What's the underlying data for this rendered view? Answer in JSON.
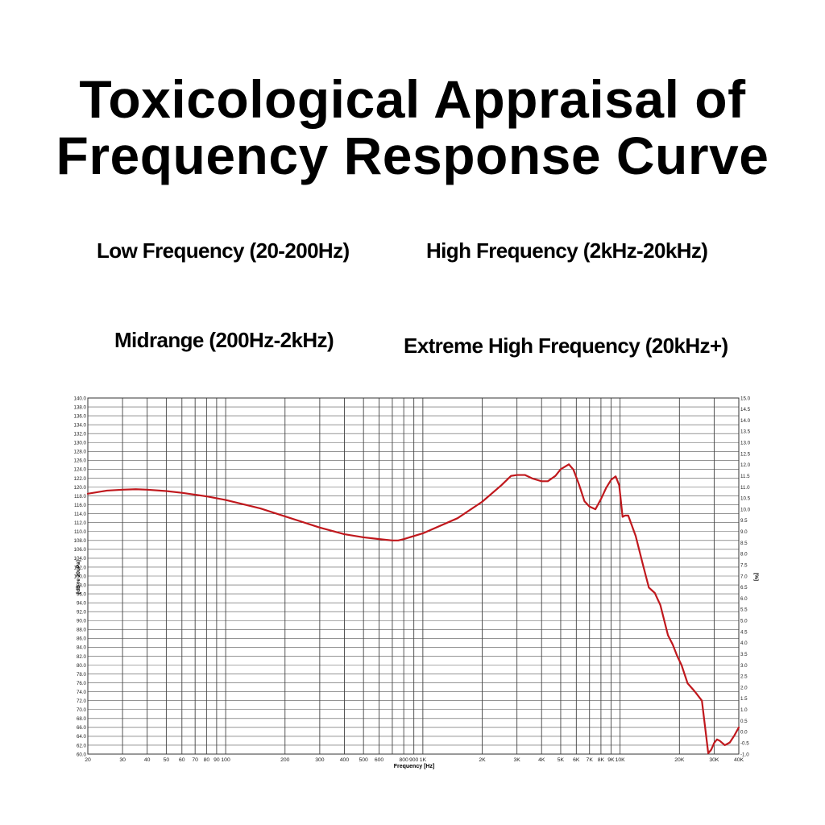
{
  "title": {
    "line1": "Toxicological Appraisal of",
    "line2": "Frequency Response Curve"
  },
  "band_labels": {
    "low": "Low Frequency (20-200Hz)",
    "high": "High Frequency (2kHz-20kHz)",
    "mid": "Midrange (200Hz-2kHz)",
    "extreme": "Extreme High Frequency (20kHz+)"
  },
  "chart_data": {
    "type": "line",
    "title": "",
    "xlabel": "Frequency [Hz]",
    "ylabel": "[dB re 20uPa]",
    "y2label": "[%]",
    "x_scale": "log",
    "xlim": [
      20,
      40000
    ],
    "ylim": [
      60,
      140
    ],
    "y2lim": [
      -1,
      15
    ],
    "grid": true,
    "line_color": "#c0181d",
    "x_ticks": [
      {
        "value": 20,
        "label": "20"
      },
      {
        "value": 30,
        "label": "30"
      },
      {
        "value": 40,
        "label": "40"
      },
      {
        "value": 50,
        "label": "50"
      },
      {
        "value": 60,
        "label": "60"
      },
      {
        "value": 70,
        "label": "70"
      },
      {
        "value": 80,
        "label": "80"
      },
      {
        "value": 90,
        "label": "90"
      },
      {
        "value": 100,
        "label": "100"
      },
      {
        "value": 200,
        "label": "200"
      },
      {
        "value": 300,
        "label": "300"
      },
      {
        "value": 400,
        "label": "400"
      },
      {
        "value": 500,
        "label": "500"
      },
      {
        "value": 600,
        "label": "600"
      },
      {
        "value": 800,
        "label": "800"
      },
      {
        "value": 900,
        "label": "900"
      },
      {
        "value": 1000,
        "label": "1K"
      },
      {
        "value": 2000,
        "label": "2K"
      },
      {
        "value": 3000,
        "label": "3K"
      },
      {
        "value": 4000,
        "label": "4K"
      },
      {
        "value": 5000,
        "label": "5K"
      },
      {
        "value": 6000,
        "label": "6K"
      },
      {
        "value": 7000,
        "label": "7K"
      },
      {
        "value": 8000,
        "label": "8K"
      },
      {
        "value": 9000,
        "label": "9K"
      },
      {
        "value": 10000,
        "label": "10K"
      },
      {
        "value": 20000,
        "label": "20K"
      },
      {
        "value": 30000,
        "label": "30K"
      },
      {
        "value": 40000,
        "label": "40K"
      }
    ],
    "x_gridlines": [
      20,
      30,
      40,
      50,
      60,
      70,
      80,
      90,
      100,
      200,
      300,
      400,
      500,
      600,
      700,
      800,
      900,
      1000,
      2000,
      3000,
      4000,
      5000,
      6000,
      7000,
      8000,
      9000,
      10000,
      20000,
      30000,
      40000
    ],
    "y_ticks": [
      "140.0",
      "138.0",
      "136.0",
      "134.0",
      "132.0",
      "130.0",
      "128.0",
      "126.0",
      "124.0",
      "122.0",
      "120.0",
      "118.0",
      "116.0",
      "114.0",
      "112.0",
      "110.0",
      "108.0",
      "106.0",
      "104.0",
      "102.0",
      "100.0",
      "98.0",
      "96.0",
      "94.0",
      "92.0",
      "90.0",
      "88.0",
      "86.0",
      "84.0",
      "82.0",
      "80.0",
      "78.0",
      "76.0",
      "74.0",
      "72.0",
      "70.0",
      "68.0",
      "66.0",
      "64.0",
      "62.0",
      "60.0"
    ],
    "y2_ticks": [
      "15.0",
      "14.5",
      "14.0",
      "13.5",
      "13.0",
      "12.5",
      "12.0",
      "11.5",
      "11.0",
      "10.5",
      "10.0",
      "9.5",
      "9.0",
      "8.5",
      "8.0",
      "7.5",
      "7.0",
      "6.5",
      "6.0",
      "5.5",
      "5.0",
      "4.5",
      "4.0",
      "3.5",
      "3.0",
      "2.5",
      "2.0",
      "1.5",
      "1.0",
      "0.5",
      "0.0",
      "-0.5",
      "-1.0"
    ],
    "series": [
      {
        "x": [
          20,
          25,
          30,
          35,
          40,
          50,
          60,
          80,
          100,
          150,
          200,
          300,
          400,
          500,
          600,
          700,
          750,
          800,
          1000,
          1500,
          2000,
          2500,
          2800,
          3000,
          3300,
          3600,
          4000,
          4300,
          4700,
          5000,
          5500,
          5800,
          6200,
          6600,
          7000,
          7500,
          8000,
          8500,
          9000,
          9500,
          9900,
          10300,
          10600,
          11000,
          12000,
          13000,
          14000,
          15000,
          16000,
          17500,
          18500,
          19500,
          20500,
          22000,
          24000,
          26000,
          28000,
          29000,
          30000,
          31000,
          32000,
          34000,
          36000,
          38000,
          40000
        ],
        "y": [
          118.5,
          119.2,
          119.4,
          119.5,
          119.4,
          119.1,
          118.7,
          117.9,
          117.1,
          115.2,
          113.4,
          110.9,
          109.4,
          108.7,
          108.3,
          108.0,
          108.0,
          108.3,
          109.6,
          113.0,
          116.7,
          120.4,
          122.5,
          122.7,
          122.7,
          121.9,
          121.3,
          121.3,
          122.5,
          124.0,
          125.1,
          123.9,
          120.5,
          116.8,
          115.6,
          115.0,
          117.3,
          119.8,
          121.6,
          122.4,
          120.4,
          113.3,
          113.6,
          113.6,
          109.0,
          102.9,
          97.4,
          96.2,
          93.5,
          86.7,
          84.6,
          82.0,
          80.0,
          75.9,
          74.0,
          72.0,
          60.2,
          61.0,
          62.5,
          63.3,
          63.0,
          62.0,
          62.6,
          64.2,
          66.0
        ]
      }
    ]
  }
}
